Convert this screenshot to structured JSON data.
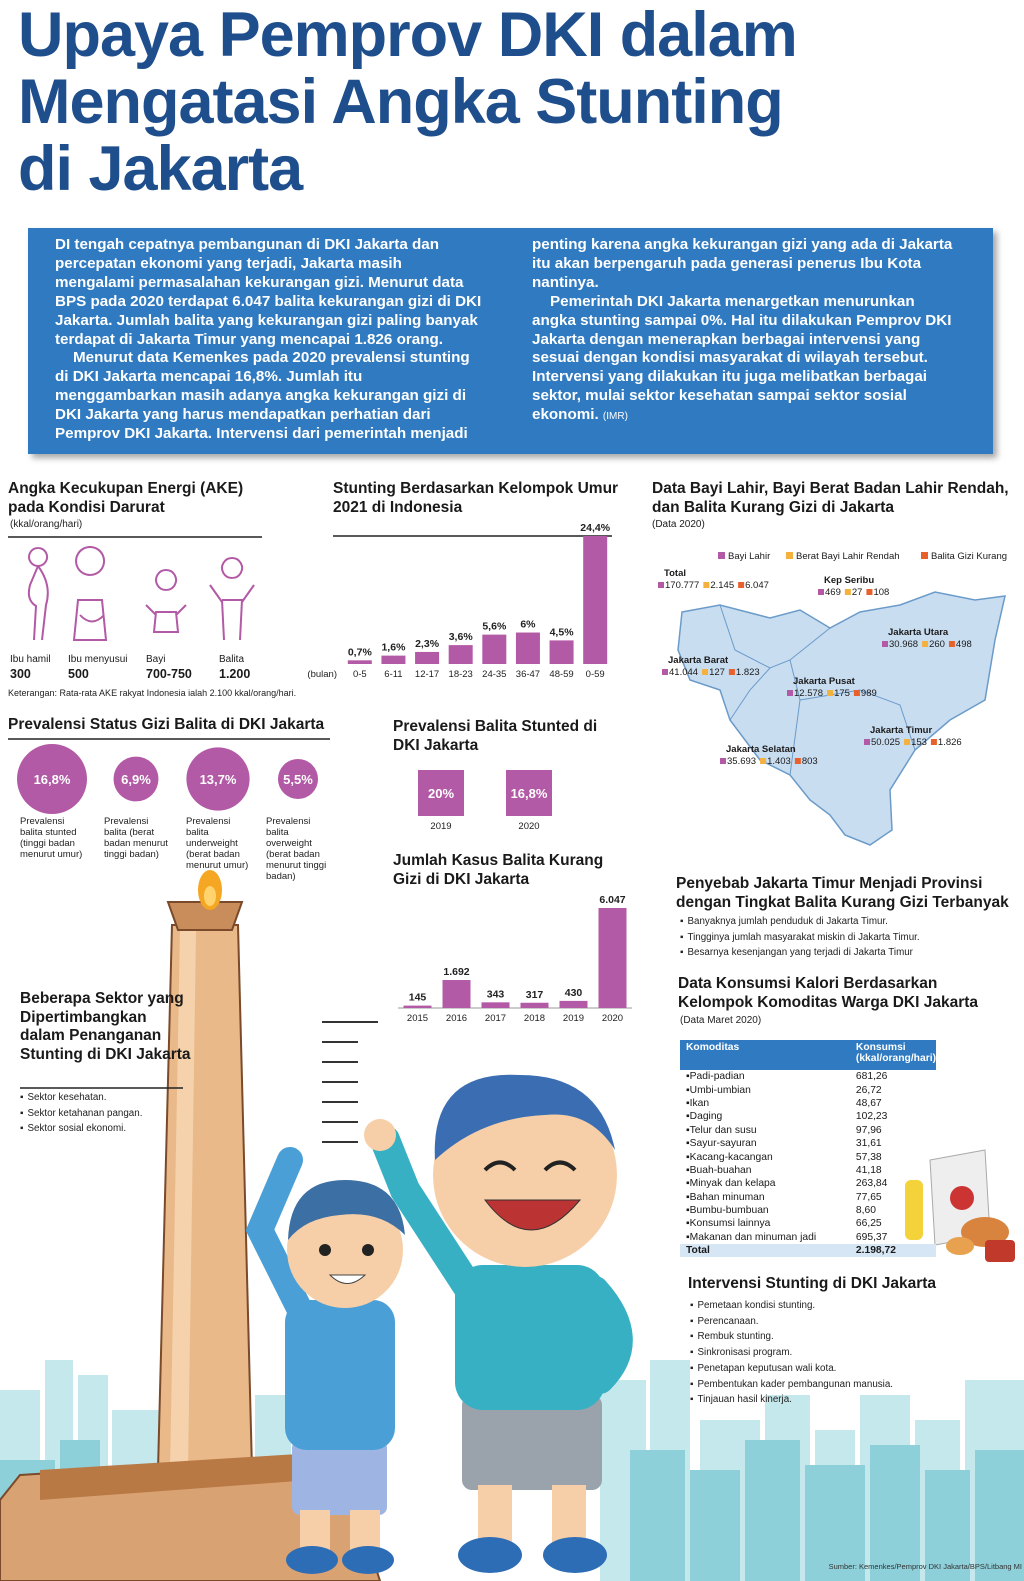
{
  "header": {
    "title_lines": [
      "Upaya Pemprov DKI dalam",
      "Mengatasi Angka Stunting",
      "di Jakarta"
    ]
  },
  "intro": {
    "paragraphs": [
      "DI tengah cepatnya pembangunan di DKI Jakarta dan percepatan ekonomi yang terjadi, Jakarta masih mengalami permasalahan kekurangan gizi. Menurut data BPS pada 2020 terdapat 6.047 balita kekurangan gizi di DKI Jakarta. Jumlah balita yang kekurangan gizi paling banyak terdapat di Jakarta Timur yang mencapai 1.826 orang.",
      "Menurut data Kemenkes pada 2020 prevalensi stunting di DKI Jakarta mencapai 16,8%. Jumlah itu menggambarkan masih adanya angka kekurangan gizi di DKI Jakarta yang harus mendapatkan perhatian dari Pemprov DKI Jakarta. Intervensi dari pemerintah menjadi penting karena angka kekurangan gizi yang ada di Jakarta itu akan berpengaruh pada generasi penerus Ibu Kota nantinya.",
      "Pemerintah DKI Jakarta menargetkan menurunkan angka stunting sampai 0%. Hal itu dilakukan Pemprov DKI Jakarta dengan menerapkan berbagai intervensi yang sesuai dengan kondisi masyarakat di wilayah tersebut. Intervensi yang dilakukan itu juga melibatkan berbagai sektor, mulai sektor kesehatan sampai sektor sosial ekonomi."
    ],
    "author": "(IMR)"
  },
  "ake": {
    "title": "Angka Kecukupan Energi (AKE) pada Kondisi Darurat",
    "unit": "(kkal/orang/hari)",
    "items": [
      {
        "label": "Ibu hamil",
        "value": "300"
      },
      {
        "label": "Ibu menyusui",
        "value": "500"
      },
      {
        "label": "Bayi",
        "value": "700-750"
      },
      {
        "label": "Balita",
        "value": "1.200"
      }
    ],
    "note": "Keterangan: Rata-rata AKE rakyat Indonesia ialah 2.100 kkal/orang/hari."
  },
  "chart_data": [
    {
      "type": "bar",
      "title": "Stunting Berdasarkan Kelompok Umur 2021 di Indonesia",
      "x_label": "(bulan)",
      "categories": [
        "0-5",
        "6-11",
        "12-17",
        "18-23",
        "24-35",
        "36-47",
        "48-59",
        "0-59"
      ],
      "values": [
        0.7,
        1.6,
        2.3,
        3.6,
        5.6,
        6,
        4.5,
        24.4
      ],
      "value_labels": [
        "0,7%",
        "1,6%",
        "2,3%",
        "3,6%",
        "5,6%",
        "6%",
        "4,5%",
        "24,4%"
      ],
      "color": "#b35aa6"
    },
    {
      "type": "bar",
      "title": "Jumlah Kasus Balita Kurang Gizi di DKI Jakarta",
      "categories": [
        "2015",
        "2016",
        "2017",
        "2018",
        "2019",
        "2020"
      ],
      "values": [
        145,
        1692,
        343,
        317,
        430,
        6047
      ],
      "value_labels": [
        "145",
        "1.692",
        "343",
        "317",
        "430",
        "6.047"
      ],
      "color": "#b35aa6"
    },
    {
      "type": "bubble",
      "title": "Prevalensi Status Gizi Balita di DKI Jakarta",
      "categories": [
        "Prevalensi balita stunted (tinggi badan menurut umur)",
        "Prevalensi balita (berat badan menurut tinggi badan)",
        "Prevalensi balita underweight (berat badan menurut umur)",
        "Prevalensi balita overweight (berat badan menurut tinggi badan)"
      ],
      "values": [
        16.8,
        6.9,
        13.7,
        5.5
      ],
      "value_labels": [
        "16,8%",
        "6,9%",
        "13,7%",
        "5,5%"
      ],
      "color": "#b35aa6"
    },
    {
      "type": "tile",
      "title": "Prevalensi Balita Stunted di DKI Jakarta",
      "categories": [
        "2019",
        "2020"
      ],
      "values": [
        20,
        16.8
      ],
      "value_labels": [
        "20%",
        "16,8%"
      ],
      "color": "#b35aa6"
    },
    {
      "type": "map",
      "title": "Data Bayi Lahir, Bayi Berat Badan Lahir Rendah, dan Balita Kurang Gizi di Jakarta",
      "subtitle": "(Data 2020)",
      "categories": [
        "Total",
        "Kep Seribu",
        "Jakarta Utara",
        "Jakarta Barat",
        "Jakarta Pusat",
        "Jakarta Timur",
        "Jakarta Selatan"
      ],
      "series": [
        {
          "name": "Bayi Lahir",
          "color": "#b35aa6",
          "values": [
            170777,
            469,
            30968,
            41044,
            12578,
            50025,
            35693
          ],
          "value_labels": [
            "170.777",
            "469",
            "30.968",
            "41.044",
            "12.578",
            "50.025",
            "35.693"
          ]
        },
        {
          "name": "Berat Bayi Lahir Rendah",
          "color": "#f4b13d",
          "values": [
            2145,
            27,
            260,
            127,
            175,
            153,
            1403
          ],
          "value_labels": [
            "2.145",
            "27",
            "260",
            "127",
            "175",
            "153",
            "1.403"
          ]
        },
        {
          "name": "Balita Gizi Kurang",
          "color": "#e8612c",
          "values": [
            6047,
            108,
            498,
            1823,
            989,
            1826,
            803
          ],
          "value_labels": [
            "6.047",
            "108",
            "498",
            "1.823",
            "989",
            "1.826",
            "803"
          ]
        }
      ]
    }
  ],
  "penyebab": {
    "title": "Penyebab Jakarta Timur Menjadi Provinsi dengan Tingkat Balita Kurang Gizi Terbanyak",
    "items": [
      "Banyaknya jumlah penduduk di Jakarta Timur.",
      "Tingginya jumlah masyarakat miskin di Jakarta Timur.",
      "Besarnya kesenjangan yang terjadi di Jakarta Timur"
    ]
  },
  "konsumsi": {
    "title": "Data Konsumsi Kalori Berdasarkan Kelompok Komoditas Warga DKI Jakarta",
    "subtitle": "(Data Maret 2020)",
    "columns": [
      "Komoditas",
      "Konsumsi (kkal/orang/hari)"
    ],
    "rows": [
      [
        "Padi-padian",
        "681,26"
      ],
      [
        "Umbi-umbian",
        "26,72"
      ],
      [
        "Ikan",
        "48,67"
      ],
      [
        "Daging",
        "102,23"
      ],
      [
        "Telur dan susu",
        "97,96"
      ],
      [
        "Sayur-sayuran",
        "31,61"
      ],
      [
        "Kacang-kacangan",
        "57,38"
      ],
      [
        "Buah-buahan",
        "41,18"
      ],
      [
        "Minyak dan kelapa",
        "263,84"
      ],
      [
        "Bahan minuman",
        "77,65"
      ],
      [
        "Bumbu-bumbuan",
        "8,60"
      ],
      [
        "Konsumsi lainnya",
        "66,25"
      ],
      [
        "Makanan dan minuman jadi",
        "695,37"
      ]
    ],
    "total": [
      "Total",
      "2.198,72"
    ]
  },
  "intervensi": {
    "title": "Intervensi Stunting di DKI Jakarta",
    "items": [
      "Pemetaan kondisi stunting.",
      "Perencanaan.",
      "Rembuk stunting.",
      "Sinkronisasi program.",
      "Penetapan keputusan wali kota.",
      "Pembentukan kader pembangunan manusia.",
      "Tinjauan hasil kinerja."
    ]
  },
  "sektor": {
    "title": "Beberapa Sektor yang Dipertimbangkan dalam Penanganan Stunting di DKI Jakarta",
    "items": [
      "Sektor kesehatan.",
      "Sektor ketahanan pangan.",
      "Sektor sosial ekonomi."
    ]
  },
  "source": "Sumber: Kemenkes/Pemprov DKI Jakarta/BPS/Litbang MI"
}
